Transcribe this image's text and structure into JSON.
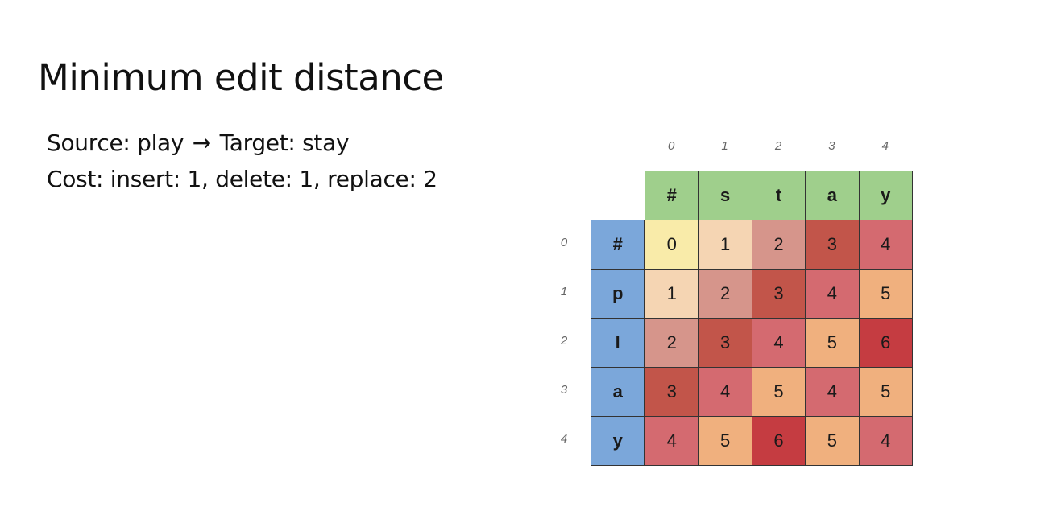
{
  "slide": {
    "title": "Minimum edit distance",
    "line1": {
      "source_label": "Source: play",
      "arrow": "→",
      "target_label": "Target: stay"
    },
    "line2": "Cost: insert: 1,  delete: 1, replace: 2"
  },
  "matrix": {
    "column_indices": [
      "0",
      "1",
      "2",
      "3",
      "4"
    ],
    "row_indices": [
      "0",
      "1",
      "2",
      "3",
      "4"
    ],
    "target_chars": [
      "#",
      "s",
      "t",
      "a",
      "y"
    ],
    "source_chars": [
      "#",
      "p",
      "l",
      "a",
      "y"
    ],
    "values": [
      [
        "0",
        "1",
        "2",
        "3",
        "4"
      ],
      [
        "1",
        "2",
        "3",
        "4",
        "5"
      ],
      [
        "2",
        "3",
        "4",
        "5",
        "6"
      ],
      [
        "3",
        "4",
        "5",
        "4",
        "5"
      ],
      [
        "4",
        "5",
        "6",
        "5",
        "4"
      ]
    ],
    "cell_colors": [
      [
        "#f9eba9",
        "#f5d5b3",
        "#d6958b",
        "#c2554a",
        "#d46a70"
      ],
      [
        "#f5d5b3",
        "#d6958b",
        "#c2554a",
        "#d46a70",
        "#f0b07e"
      ],
      [
        "#d6958b",
        "#c2554a",
        "#d46a70",
        "#f0b07e",
        "#c53c41"
      ],
      [
        "#c2554a",
        "#d46a70",
        "#f0b07e",
        "#d46a70",
        "#f0b07e"
      ],
      [
        "#d46a70",
        "#f0b07e",
        "#c53c41",
        "#f0b07e",
        "#d46a70"
      ]
    ],
    "header_colors": {
      "top": "#9fcf8c",
      "left": "#7ba7da"
    }
  }
}
